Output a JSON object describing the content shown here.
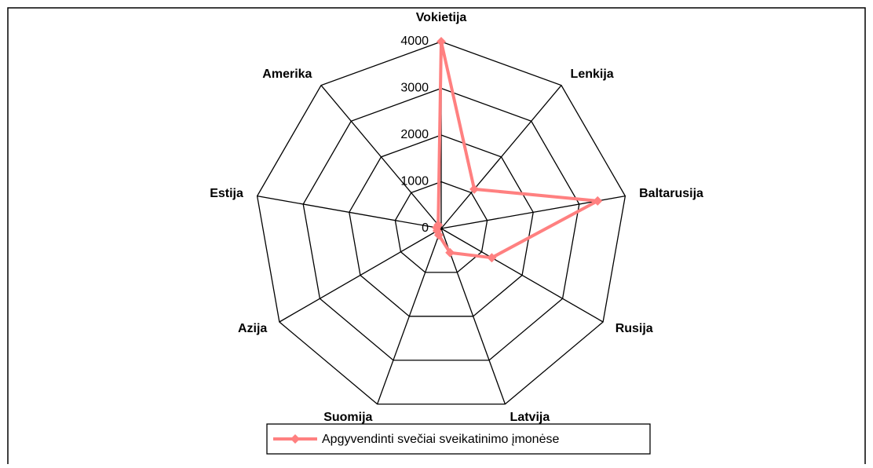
{
  "chart_data": {
    "type": "radar",
    "categories": [
      "Vokietija",
      "Lenkija",
      "Baltarusija",
      "Rusija",
      "Latvija",
      "Suomija",
      "Azija",
      "Estija",
      "Amerika"
    ],
    "series": [
      {
        "name": "Apgyvendinti svečiai sveikatinimo įmonėse",
        "color": "#ff8080",
        "values": [
          4000,
          1100,
          3400,
          1250,
          550,
          150,
          100,
          100,
          100
        ]
      }
    ],
    "ylim": [
      0,
      4000
    ],
    "yticks": [
      0,
      1000,
      2000,
      3000,
      4000
    ],
    "grid": true,
    "legend": "bottom"
  }
}
